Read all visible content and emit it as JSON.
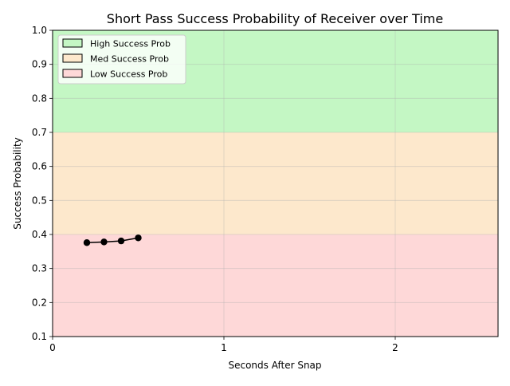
{
  "chart_data": {
    "type": "line",
    "title": "Short Pass Success Probability of Receiver over Time",
    "xlabel": "Seconds After Snap",
    "ylabel": "Success Probability",
    "xlim": [
      0,
      2.6
    ],
    "ylim": [
      0.1,
      1.0
    ],
    "xticks": [
      0,
      1,
      2
    ],
    "yticks": [
      0.1,
      0.2,
      0.3,
      0.4,
      0.5,
      0.6,
      0.7,
      0.8,
      0.9,
      1.0
    ],
    "grid": true,
    "bands": [
      {
        "name": "High Success Prob",
        "from": 0.7,
        "to": 1.0,
        "color": "#c4f7c4"
      },
      {
        "name": "Med Success Prob",
        "from": 0.4,
        "to": 0.7,
        "color": "#fde8cc"
      },
      {
        "name": "Low Success Prob",
        "from": 0.1,
        "to": 0.4,
        "color": "#fed8d8"
      }
    ],
    "legend_position": "upper-left",
    "series": [
      {
        "x": [
          0.2,
          0.3,
          0.4,
          0.5
        ],
        "y": [
          0.376,
          0.378,
          0.381,
          0.39
        ],
        "color": "#000000"
      }
    ]
  }
}
